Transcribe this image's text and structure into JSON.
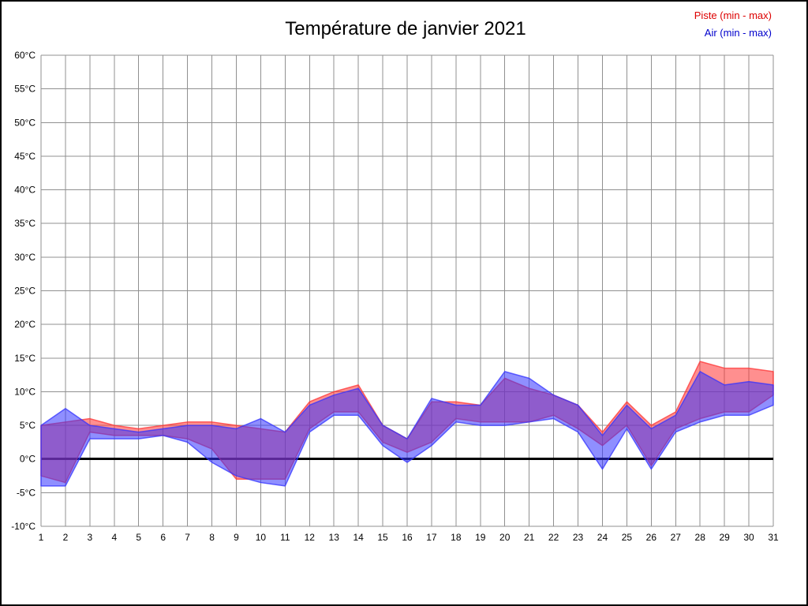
{
  "page": {
    "title": "Température de janvier 2021"
  },
  "legend": {
    "piste": {
      "label": "Piste (min - max)",
      "color": "#dd0000"
    },
    "air": {
      "label": "Air (min - max)",
      "color": "#0000cc"
    }
  },
  "chart_data": {
    "type": "area",
    "title": "Température de janvier 2021",
    "xlabel": "",
    "ylabel": "",
    "grid": true,
    "zero_line": true,
    "legend_position": "top-right",
    "ylim": [
      -10,
      60
    ],
    "ytick_step": 5,
    "ytick_labels": [
      "60°C",
      "55°C",
      "50°C",
      "45°C",
      "40°C",
      "35°C",
      "30°C",
      "25°C",
      "20°C",
      "15°C",
      "10°C",
      "5°C",
      "0°C",
      "-5°C",
      "-10°C"
    ],
    "x": [
      1,
      2,
      3,
      4,
      5,
      6,
      7,
      8,
      9,
      10,
      11,
      12,
      13,
      14,
      15,
      16,
      17,
      18,
      19,
      20,
      21,
      22,
      23,
      24,
      25,
      26,
      27,
      28,
      29,
      30,
      31
    ],
    "xtick_labels": [
      "1",
      "2",
      "3",
      "4",
      "5",
      "6",
      "7",
      "8",
      "9",
      "10",
      "11",
      "12",
      "13",
      "14",
      "15",
      "16",
      "17",
      "18",
      "19",
      "20",
      "21",
      "22",
      "23",
      "24",
      "25",
      "26",
      "27",
      "28",
      "29",
      "30",
      "31"
    ],
    "series": [
      {
        "name": "Piste (min - max)",
        "band": "piste",
        "color": "#ff3333",
        "fill_opacity": 0.55,
        "min": [
          -2.5,
          -3.5,
          4.0,
          3.5,
          3.5,
          3.5,
          3.0,
          1.5,
          -3.0,
          -3.0,
          -3.0,
          4.5,
          7.0,
          7.0,
          2.5,
          1.0,
          2.5,
          6.0,
          5.5,
          5.5,
          5.5,
          6.5,
          4.5,
          2.0,
          5.0,
          -1.0,
          4.5,
          6.0,
          7.0,
          7.0,
          9.5
        ],
        "max": [
          5.0,
          5.5,
          6.0,
          5.0,
          4.5,
          5.0,
          5.5,
          5.5,
          5.0,
          4.5,
          4.0,
          8.5,
          10.0,
          11.0,
          5.0,
          3.0,
          8.5,
          8.5,
          8.0,
          12.0,
          10.5,
          9.5,
          8.0,
          4.0,
          8.5,
          5.0,
          7.0,
          14.5,
          13.5,
          13.5,
          13.0
        ]
      },
      {
        "name": "Air (min - max)",
        "band": "air",
        "color": "#3333ff",
        "fill_opacity": 0.55,
        "min": [
          -4.0,
          -4.0,
          3.0,
          3.0,
          3.0,
          3.5,
          2.5,
          -0.5,
          -2.5,
          -3.5,
          -4.0,
          4.0,
          6.5,
          6.5,
          2.0,
          -0.5,
          2.0,
          5.5,
          5.0,
          5.0,
          5.5,
          6.0,
          4.0,
          -1.5,
          4.5,
          -1.5,
          4.0,
          5.5,
          6.5,
          6.5,
          8.0
        ],
        "max": [
          5.0,
          7.5,
          5.0,
          4.5,
          4.0,
          4.5,
          5.0,
          5.0,
          4.5,
          6.0,
          4.0,
          8.0,
          9.5,
          10.5,
          5.0,
          3.0,
          9.0,
          8.0,
          8.0,
          13.0,
          12.0,
          9.5,
          8.0,
          3.5,
          8.0,
          4.5,
          6.5,
          13.0,
          11.0,
          11.5,
          11.0
        ]
      }
    ]
  }
}
